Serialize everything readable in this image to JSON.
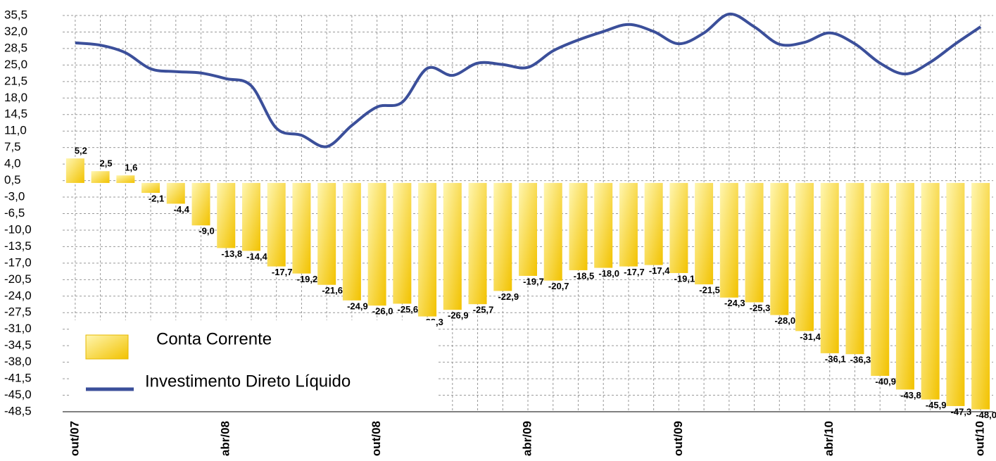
{
  "chart_data": {
    "type": "bar_line",
    "categories": [
      "out/07",
      null,
      null,
      null,
      null,
      null,
      "abr/08",
      null,
      null,
      null,
      null,
      null,
      "out/08",
      null,
      null,
      null,
      null,
      null,
      "abr/09",
      null,
      null,
      null,
      null,
      null,
      "out/09",
      null,
      null,
      null,
      null,
      null,
      "abr/10",
      null,
      null,
      null,
      null,
      null,
      "out/10"
    ],
    "series": [
      {
        "name": "Conta Corrente",
        "type": "bar",
        "color": "#f5c000",
        "values": [
          5.2,
          2.5,
          1.6,
          -2.1,
          -4.4,
          -9.0,
          -13.8,
          -14.4,
          -17.7,
          -19.2,
          -21.6,
          -24.9,
          -26.0,
          -25.6,
          -28.3,
          -26.9,
          -25.7,
          -22.9,
          -19.7,
          -20.7,
          -18.5,
          -18.0,
          -17.7,
          -17.4,
          -19.1,
          -21.5,
          -24.3,
          -25.3,
          -28.0,
          -31.4,
          -36.1,
          -36.3,
          -40.9,
          -43.8,
          -45.9,
          -47.3,
          -48.0
        ],
        "value_labels": [
          "5,2",
          "2,5",
          "1,6",
          "-2,1",
          "-4,4",
          "-9,0",
          "-13,8",
          "-14,4",
          "-17,7",
          "-19,2",
          "-21,6",
          "-24,9",
          "-26,0",
          "-25,6",
          "-28,3",
          "-26,9",
          "-25,7",
          "-22,9",
          "-19,7",
          "-20,7",
          "-18,5",
          "-18,0",
          "-17,7",
          "-17,4",
          "-19,1",
          "-21,5",
          "-24,3",
          "-25,3",
          "-28,0",
          "-31,4",
          "-36,1",
          "-36,3",
          "-40,9",
          "-43,8",
          "-45,9",
          "-47,3",
          "-48,0"
        ]
      },
      {
        "name": "Investimento Direto Líquido",
        "type": "line",
        "color": "#3b4f9a",
        "values": [
          29.7,
          29.2,
          27.6,
          24.2,
          23.6,
          23.3,
          22.1,
          20.6,
          11.6,
          10.1,
          7.7,
          12.2,
          16.1,
          17.1,
          24.3,
          22.8,
          25.4,
          25.1,
          24.5,
          28.0,
          30.3,
          32.1,
          33.6,
          32.1,
          29.5,
          31.8,
          35.8,
          33.1,
          29.4,
          29.8,
          31.8,
          29.5,
          25.4,
          23.1,
          25.6,
          29.5,
          33.1
        ]
      }
    ],
    "ylim": [
      -48.5,
      35.5
    ],
    "yticks": [
      {
        "value": 35.5,
        "label": "35,5"
      },
      {
        "value": 32.0,
        "label": "32,0"
      },
      {
        "value": 28.5,
        "label": "28,5"
      },
      {
        "value": 25.0,
        "label": "25,0"
      },
      {
        "value": 21.5,
        "label": "21,5"
      },
      {
        "value": 18.0,
        "label": "18,0"
      },
      {
        "value": 14.5,
        "label": "14,5"
      },
      {
        "value": 11.0,
        "label": "11,0"
      },
      {
        "value": 7.5,
        "label": "7,5"
      },
      {
        "value": 4.0,
        "label": "4,0"
      },
      {
        "value": 0.5,
        "label": "0,5"
      },
      {
        "value": -3.0,
        "label": "-3,0"
      },
      {
        "value": -6.5,
        "label": "-6,5"
      },
      {
        "value": -10.0,
        "label": "-10,0"
      },
      {
        "value": -13.5,
        "label": "-13,5"
      },
      {
        "value": -17.0,
        "label": "-17,0"
      },
      {
        "value": -20.5,
        "label": "-20,5"
      },
      {
        "value": -24.0,
        "label": "-24,0"
      },
      {
        "value": -27.5,
        "label": "-27,5"
      },
      {
        "value": -31.0,
        "label": "-31,0"
      },
      {
        "value": -34.5,
        "label": "-34,5"
      },
      {
        "value": -38.0,
        "label": "-38,0"
      },
      {
        "value": -41.5,
        "label": "-41,5"
      },
      {
        "value": -45.0,
        "label": "-45,0"
      },
      {
        "value": -48.5,
        "label": "-48,5"
      }
    ],
    "grid": true,
    "legend": "bottom-left"
  }
}
